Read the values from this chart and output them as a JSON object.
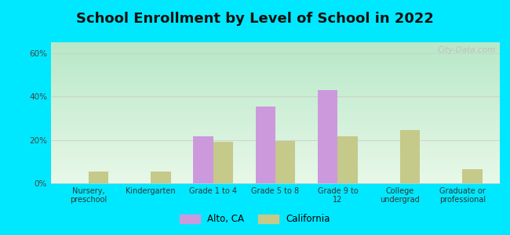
{
  "title": "School Enrollment by Level of School in 2022",
  "categories": [
    "Nursery,\npreschool",
    "Kindergarten",
    "Grade 1 to 4",
    "Grade 5 to 8",
    "Grade 9 to\n12",
    "College\nundergrad",
    "Graduate or\nprofessional"
  ],
  "alto_values": [
    0.0,
    0.0,
    21.5,
    35.5,
    43.0,
    0.0,
    0.0
  ],
  "california_values": [
    5.5,
    5.5,
    19.0,
    19.5,
    21.5,
    24.5,
    6.5
  ],
  "alto_color": "#cc99dd",
  "california_color": "#c5c98a",
  "background_outer": "#00e8ff",
  "bg_top_color": "#e8f8e8",
  "bg_bottom_color": "#b8e8c8",
  "title_fontsize": 13,
  "ylabel_ticks": [
    "0%",
    "20%",
    "40%",
    "60%"
  ],
  "ytick_vals": [
    0,
    20,
    40,
    60
  ],
  "ylim": [
    0,
    65
  ],
  "legend_labels": [
    "Alto, CA",
    "California"
  ],
  "watermark": "City-Data.com",
  "bar_width": 0.32
}
